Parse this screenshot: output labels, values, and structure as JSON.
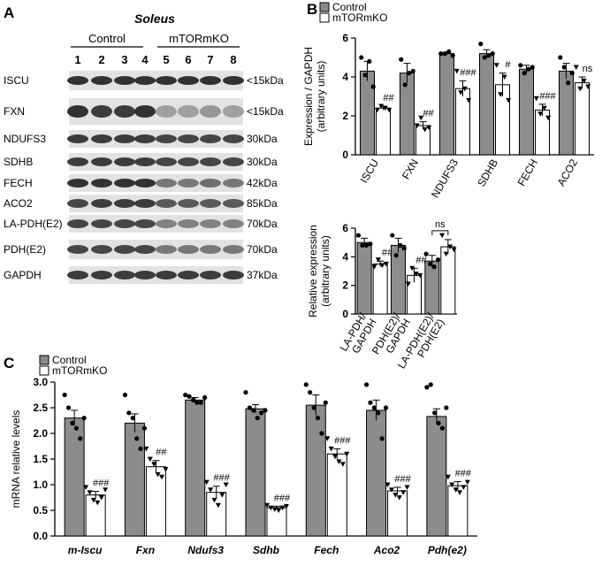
{
  "panel_labels": {
    "a": "A",
    "b": "B",
    "c": "C"
  },
  "blot": {
    "title": "Soleus",
    "group_labels": [
      "Control",
      "mTORmKO"
    ],
    "lane_numbers": [
      "1",
      "2",
      "3",
      "4",
      "5",
      "6",
      "7",
      "8"
    ],
    "rows": [
      {
        "protein": "ISCU",
        "size": "<15kDa"
      },
      {
        "protein": "FXN",
        "size": "<15kDa"
      },
      {
        "protein": "NDUFS3",
        "size": "30kDa"
      },
      {
        "protein": "SDHB",
        "size": "30kDa"
      },
      {
        "protein": "FECH",
        "size": "42kDa"
      },
      {
        "protein": "ACO2",
        "size": "85kDa"
      },
      {
        "protein": "LA-PDH(E2)",
        "size": "70kDa"
      },
      {
        "protein": "PDH(E2)",
        "size": "70kDa"
      },
      {
        "protein": "GAPDH",
        "size": "37kDa"
      }
    ]
  },
  "legend": {
    "control": "Control",
    "mtormko": "mTORmKO"
  },
  "colors": {
    "control": "#8c8c8c",
    "mtormko": "#ffffff",
    "axis": "#000000"
  },
  "chart_data": [
    {
      "id": "B-top",
      "type": "bar",
      "ylabel": "Expression / GAPDH\n(arbitrary units)",
      "ylim": [
        0,
        6
      ],
      "yticks": [
        0,
        2,
        4,
        6
      ],
      "categories": [
        "ISCU",
        "FXN",
        "NDUFS3",
        "SDHB",
        "FECH",
        "ACO2"
      ],
      "series": [
        {
          "name": "Control",
          "values": [
            4.3,
            4.2,
            5.2,
            5.2,
            4.4,
            4.3
          ],
          "errors": [
            0.5,
            0.5,
            0.05,
            0.2,
            0.2,
            0.4
          ]
        },
        {
          "name": "mTORmKO",
          "values": [
            2.4,
            1.5,
            3.4,
            3.6,
            2.3,
            3.7
          ],
          "errors": [
            0.1,
            0.2,
            0.4,
            0.6,
            0.3,
            0.3
          ]
        }
      ],
      "points": [
        [
          [
            5.0,
            4.1,
            4.8,
            3.5
          ],
          [
            2.3,
            2.5,
            2.4,
            2.3
          ]
        ],
        [
          [
            4.9,
            3.6,
            4.2,
            4.3
          ],
          [
            1.5,
            1.9,
            1.3,
            1.4
          ]
        ],
        [
          [
            5.2,
            5.2,
            5.3,
            5.1
          ],
          [
            4.3,
            3.2,
            3.4,
            2.8
          ]
        ],
        [
          [
            5.7,
            5.0,
            5.1,
            5.2
          ],
          [
            4.6,
            3.1,
            4.0,
            2.8
          ]
        ],
        [
          [
            4.6,
            4.2,
            4.4,
            4.5
          ],
          [
            2.9,
            2.1,
            2.4,
            1.9
          ]
        ],
        [
          [
            5.0,
            4.5,
            3.7,
            4.2
          ],
          [
            4.5,
            3.4,
            3.8,
            3.5
          ]
        ]
      ],
      "annotations": [
        "##",
        "##",
        "###",
        "#",
        "###",
        "ns"
      ]
    },
    {
      "id": "B-bottom",
      "type": "bar",
      "ylabel": "Relative expression\n(arbitrary units)",
      "ylim": [
        0,
        6
      ],
      "yticks": [
        0,
        2,
        4,
        6
      ],
      "categories": [
        "LA-PDH/\nGAPDH",
        "PDH(E2)/\nGAPDH",
        "LA-PDH(E2)/\nPDH(E2)"
      ],
      "series": [
        {
          "name": "Control",
          "values": [
            5.0,
            4.8,
            3.7
          ],
          "errors": [
            0.3,
            0.5,
            0.4
          ]
        },
        {
          "name": "mTORmKO",
          "values": [
            3.5,
            2.7,
            4.7
          ],
          "errors": [
            0.2,
            0.5,
            0.5
          ]
        }
      ],
      "points": [
        [
          [
            5.5,
            4.8,
            4.8,
            4.9
          ],
          [
            3.3,
            3.8,
            3.4,
            3.5
          ]
        ],
        [
          [
            5.5,
            4.1,
            4.8,
            4.6
          ],
          [
            2.1,
            3.2,
            2.8,
            2.7
          ]
        ],
        [
          [
            4.2,
            3.5,
            3.3,
            3.8
          ],
          [
            5.5,
            4.2,
            4.7,
            4.5
          ]
        ]
      ],
      "annotations": [
        "##",
        "##",
        "ns"
      ]
    },
    {
      "id": "C",
      "type": "bar",
      "ylabel": "mRNA relative levels",
      "ylim": [
        0,
        3
      ],
      "yticks": [
        0.0,
        0.5,
        1.0,
        1.5,
        2.0,
        2.5,
        3.0
      ],
      "categories": [
        "m-Iscu",
        "Fxn",
        "Ndufs3",
        "Sdhb",
        "Fech",
        "Aco2",
        "Pdh(e2)"
      ],
      "series": [
        {
          "name": "Control",
          "values": [
            2.3,
            2.2,
            2.65,
            2.48,
            2.55,
            2.45,
            2.33
          ],
          "errors": [
            0.15,
            0.18,
            0.05,
            0.08,
            0.2,
            0.2,
            0.15
          ]
        },
        {
          "name": "mTORmKO",
          "values": [
            0.8,
            1.35,
            0.85,
            0.55,
            1.6,
            0.88,
            0.98
          ],
          "errors": [
            0.07,
            0.12,
            0.12,
            0.03,
            0.1,
            0.07,
            0.08
          ]
        }
      ],
      "points": [
        [
          [
            2.75,
            2.5,
            2.2,
            2.1,
            1.9,
            2.3
          ],
          [
            0.95,
            0.85,
            0.7,
            0.65,
            0.75,
            0.9
          ]
        ],
        [
          [
            2.75,
            2.4,
            2.3,
            1.9,
            1.7,
            2.1
          ],
          [
            1.7,
            1.5,
            1.4,
            1.2,
            1.15,
            1.3
          ]
        ],
        [
          [
            2.75,
            2.72,
            2.65,
            2.6,
            2.6,
            2.7
          ],
          [
            1.05,
            0.9,
            0.7,
            0.6,
            0.8,
            1.0
          ]
        ],
        [
          [
            2.8,
            2.5,
            2.45,
            2.3,
            2.4,
            2.45
          ],
          [
            0.6,
            0.55,
            0.52,
            0.5,
            0.55,
            0.58
          ]
        ],
        [
          [
            2.95,
            2.8,
            2.5,
            2.3,
            2.0,
            2.6
          ],
          [
            1.9,
            1.7,
            1.55,
            1.45,
            1.4,
            1.6
          ]
        ],
        [
          [
            2.95,
            2.6,
            2.5,
            2.4,
            1.9,
            2.5
          ],
          [
            1.0,
            0.9,
            0.8,
            0.75,
            0.85,
            0.95
          ]
        ],
        [
          [
            2.9,
            2.95,
            2.4,
            2.2,
            2.1,
            2.5
          ],
          [
            1.15,
            1.0,
            0.9,
            0.85,
            0.95,
            1.05
          ]
        ]
      ],
      "annotations": [
        "###",
        "##",
        "###",
        "###",
        "###",
        "###",
        "###"
      ]
    }
  ]
}
